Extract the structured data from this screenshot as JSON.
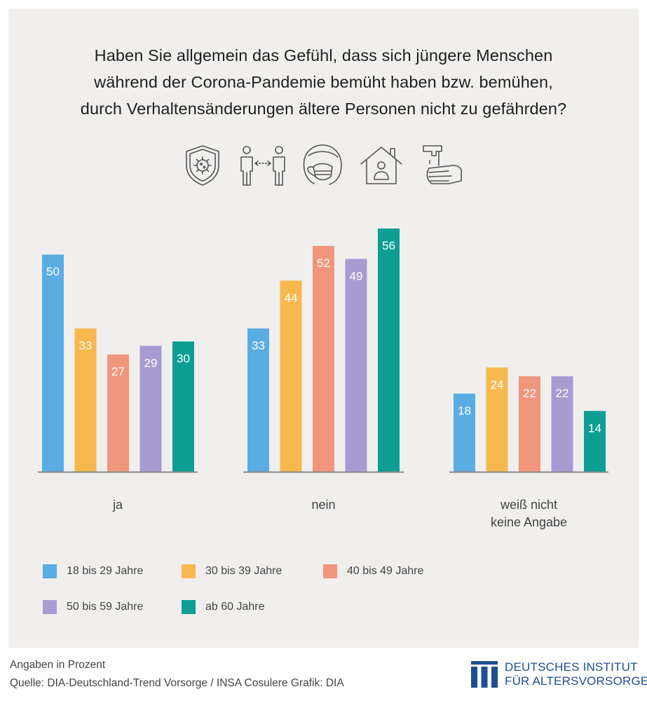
{
  "title_lines": [
    "Haben Sie allgemein das Gefühl, dass sich jüngere Menschen",
    "während der Corona-Pandemie bemüht haben bzw. bemühen,",
    "durch Verhaltensänderungen ältere Personen nicht zu gefährden?"
  ],
  "icons": [
    "virus-shield-icon",
    "social-distance-icon",
    "face-mask-icon",
    "stay-home-icon",
    "hand-sanitizer-icon"
  ],
  "chart_data": {
    "type": "bar",
    "categories": [
      "ja",
      "nein",
      "weiß nicht\nkeine Angabe"
    ],
    "category_lines": [
      [
        "ja"
      ],
      [
        "nein"
      ],
      [
        "weiß nicht",
        "keine Angabe"
      ]
    ],
    "series": [
      {
        "name": "18 bis 29 Jahre",
        "color": "#5aade2",
        "values": [
          50,
          33,
          18
        ]
      },
      {
        "name": "30 bis 39 Jahre",
        "color": "#f7b84f",
        "values": [
          33,
          44,
          24
        ]
      },
      {
        "name": "40 bis 49 Jahre",
        "color": "#f0967c",
        "values": [
          27,
          52,
          22
        ]
      },
      {
        "name": "50 bis 59 Jahre",
        "color": "#a79bd2",
        "values": [
          29,
          49,
          22
        ]
      },
      {
        "name": "ab 60 Jahre",
        "color": "#0d9e94",
        "values": [
          30,
          56,
          14
        ]
      }
    ],
    "ylim": [
      0,
      60
    ],
    "grid": false,
    "legend_position": "bottom",
    "unit_note": "Angaben in Prozent"
  },
  "footer": {
    "note": "Angaben in Prozent",
    "source": "Quelle: DIA-Deutschland-Trend Vorsorge / INSA Cosulere  Grafik: DIA"
  },
  "logo": {
    "line1": "DEUTSCHES INSTITUT",
    "line2": "FÜR ALTERSVORSORGE",
    "color": "#1d4f91"
  }
}
